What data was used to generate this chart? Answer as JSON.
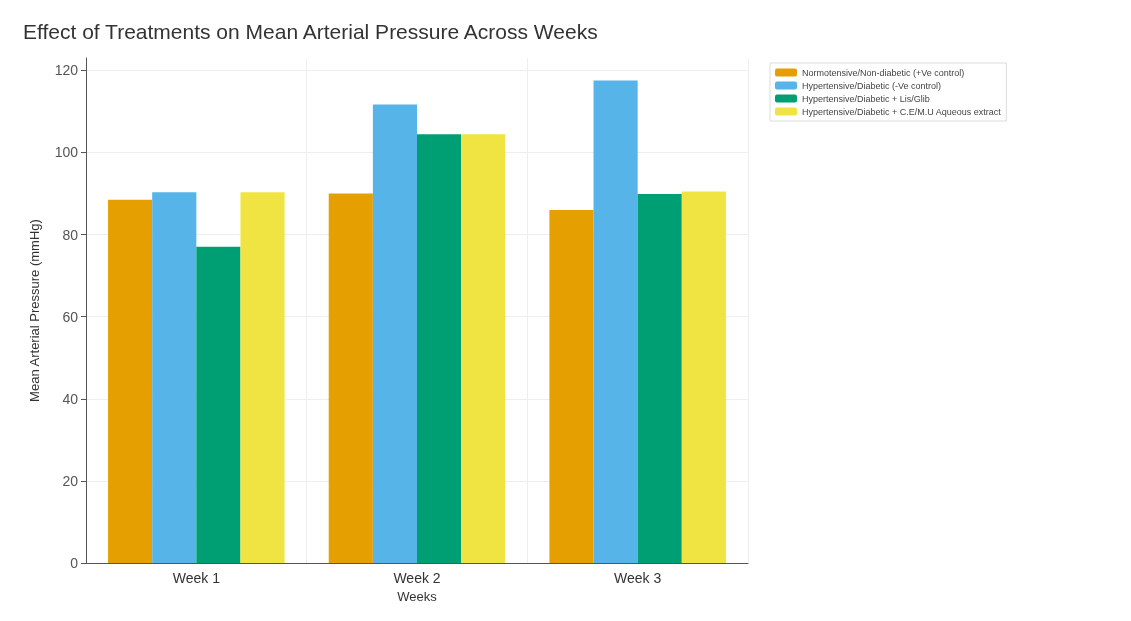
{
  "chart_data": {
    "type": "bar",
    "title": "Effect of Treatments on Mean Arterial Pressure Across Weeks",
    "xlabel": "Weeks",
    "ylabel": "Mean Arterial Pressure (mmHg)",
    "categories": [
      "Week 1",
      "Week 2",
      "Week 3"
    ],
    "series": [
      {
        "name": "Normotensive/Non-diabetic (+Ve control)",
        "color": "#e69f00",
        "values": [
          88.5,
          90,
          86
        ]
      },
      {
        "name": "Hypertensive/Diabetic (-Ve control)",
        "color": "#56b4e9",
        "values": [
          90.3,
          111.7,
          117.5
        ]
      },
      {
        "name": "Hypertensive/Diabetic + Lis/Glib",
        "color": "#009e73",
        "values": [
          77,
          104.4,
          89.9
        ]
      },
      {
        "name": "Hypertensive/Diabetic + C.E/M.U Aqueous extract",
        "color": "#f0e442",
        "values": [
          90.3,
          104.4,
          90.5
        ]
      }
    ],
    "ylim": [
      0,
      123
    ],
    "yticks": [
      0,
      20,
      40,
      60,
      80,
      100,
      120
    ],
    "grid": true,
    "legend": "top right"
  }
}
